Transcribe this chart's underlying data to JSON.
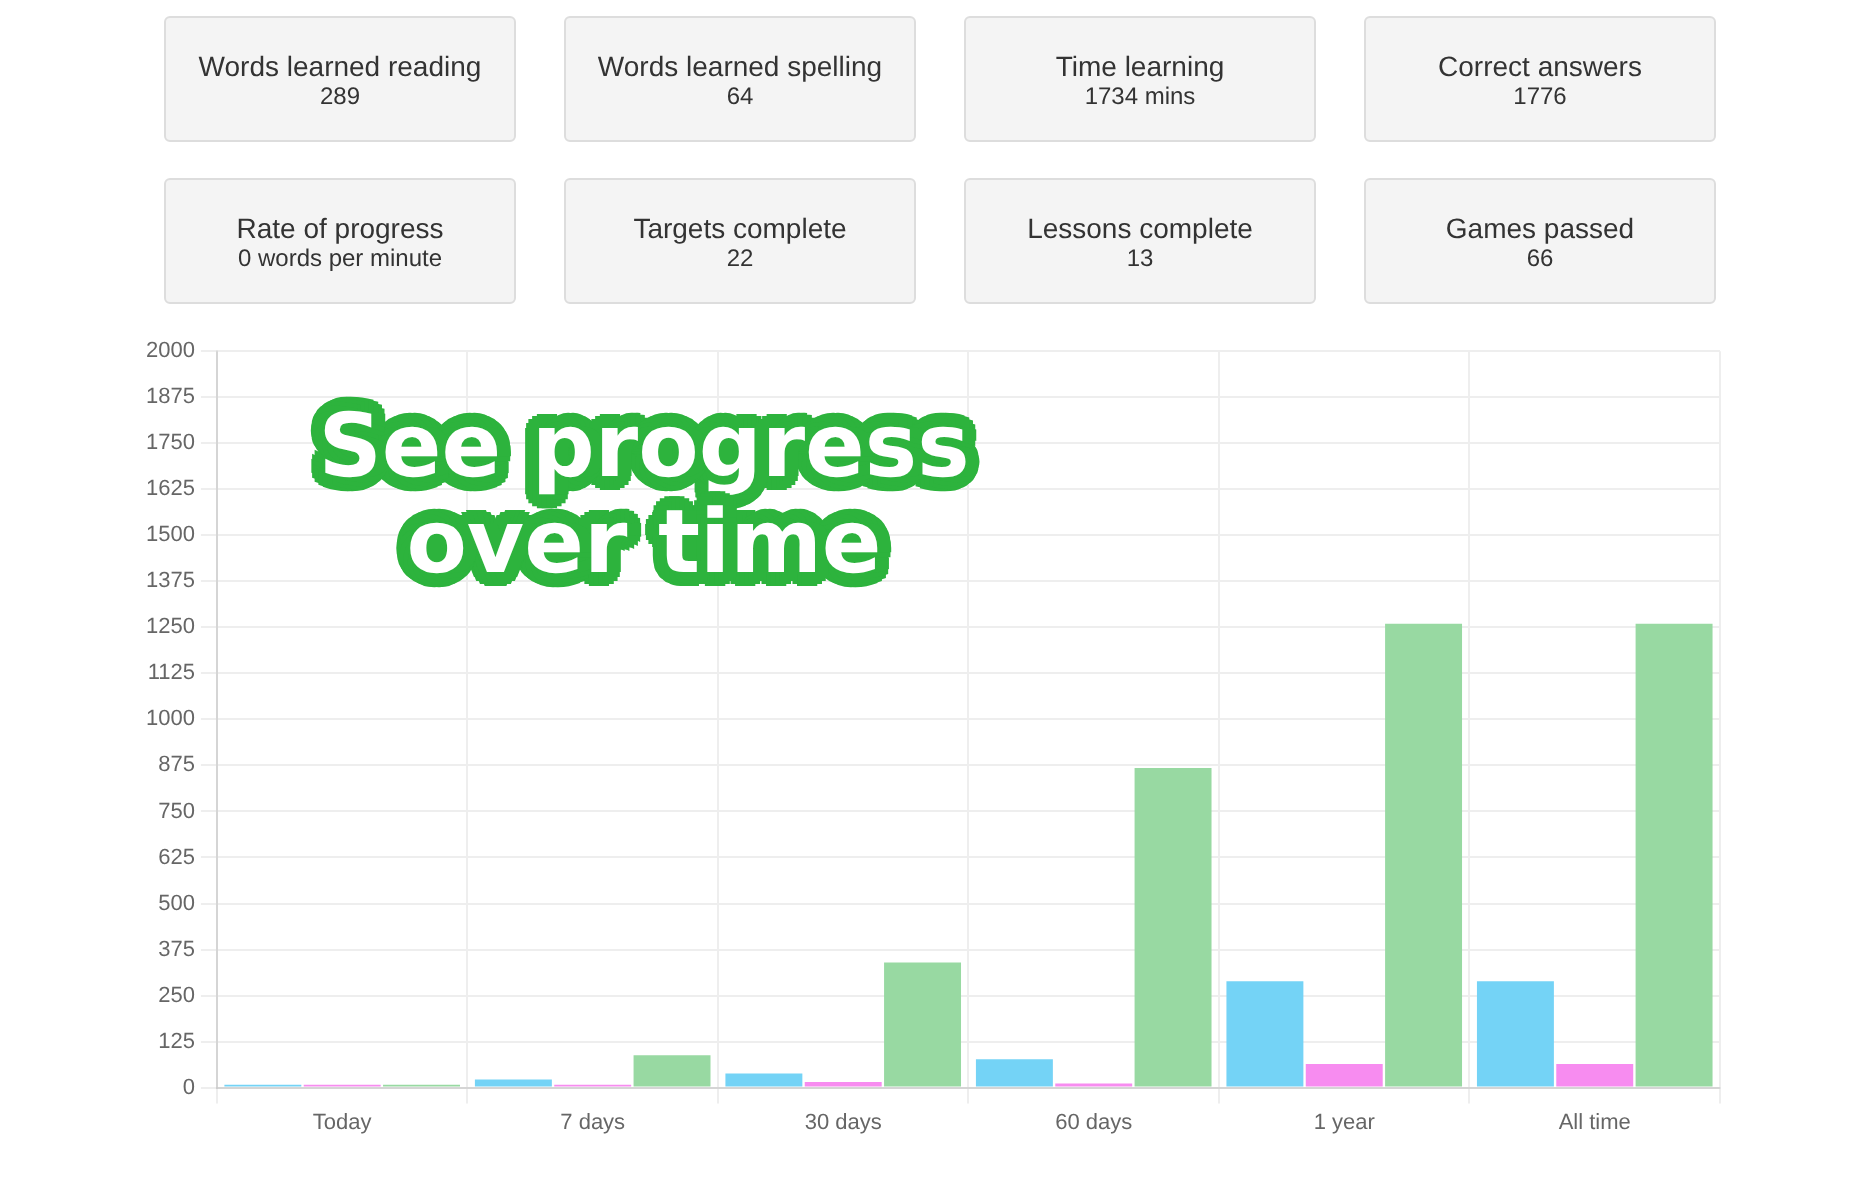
{
  "chart_data": [
    {
      "type": "other",
      "categories": [
        "Words learned reading",
        "Words learned spelling",
        "Time learning",
        "Correct answers",
        "Rate of progress",
        "Targets complete",
        "Lessons complete",
        "Games passed"
      ],
      "value_labels": [
        "289",
        "64",
        "1734 mins",
        "1776",
        "0 words per minute",
        "22",
        "13",
        "66"
      ]
    },
    {
      "type": "bar",
      "title": "See progress over time",
      "categories": [
        "Today",
        "7 days",
        "30 days",
        "60 days",
        "1 year",
        "All time"
      ],
      "series": [
        {
          "color": "#74d3f6",
          "values": [
            8,
            22,
            38,
            77,
            289,
            289
          ]
        },
        {
          "color": "#f78cf0",
          "values": [
            8,
            8,
            15,
            11,
            64,
            64
          ]
        },
        {
          "color": "#98d9a2",
          "values": [
            8,
            88,
            340,
            868,
            1260,
            1260
          ]
        }
      ],
      "ylim": [
        0,
        2000
      ],
      "yticks": [
        0,
        125,
        250,
        375,
        500,
        625,
        750,
        875,
        1000,
        1125,
        1250,
        1375,
        1500,
        1625,
        1750,
        1875,
        2000
      ],
      "grid": true
    }
  ]
}
